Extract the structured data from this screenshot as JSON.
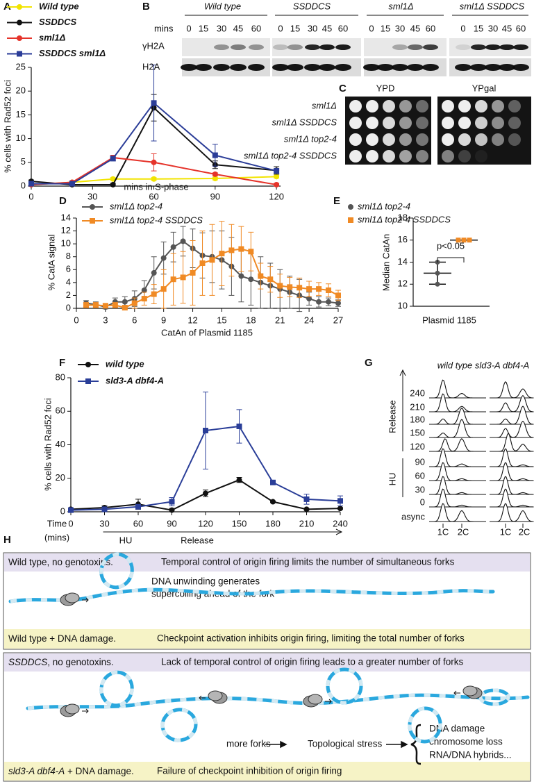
{
  "panel_labels": [
    "A",
    "B",
    "C",
    "D",
    "E",
    "F",
    "G",
    "H"
  ],
  "chart_data": [
    {
      "type": "line",
      "ylabel": "% cells with Rad52 foci",
      "xlabel": "mins in S-phase",
      "x": [
        0,
        20,
        40,
        60,
        90,
        120
      ],
      "xlim": [
        0,
        122
      ],
      "xticks": [
        0,
        30,
        60,
        90,
        120
      ],
      "ylim": [
        0,
        25
      ],
      "yticks": [
        0,
        5,
        10,
        15,
        20,
        25
      ],
      "series": [
        {
          "name": "Wild type",
          "color": "#f2e400",
          "marker": "circle",
          "values": [
            0.3,
            0.8,
            1.5,
            1.5,
            1.6,
            2
          ],
          "errors": [
            0.3,
            0.3,
            0.3,
            0.3,
            0.3,
            0.3
          ]
        },
        {
          "name": "SSDDCS",
          "color": "#111111",
          "marker": "circle",
          "values": [
            1,
            0.3,
            0.3,
            16.5,
            4.5,
            3.3
          ],
          "errors": [
            0.3,
            0.3,
            0.3,
            2.8,
            0.8,
            0.8
          ]
        },
        {
          "name": "sml1Δ",
          "color": "#e5332a",
          "marker": "circle",
          "values": [
            0.3,
            0.8,
            6,
            5,
            2.5,
            0.3
          ],
          "errors": [
            0.3,
            0.3,
            0.5,
            1.8,
            0.3,
            0.3
          ]
        },
        {
          "name": "SSDDCS sml1Δ",
          "color": "#2b3d98",
          "marker": "square",
          "values": [
            0.5,
            0.5,
            5.8,
            17.5,
            6.5,
            3.2
          ],
          "errors": [
            0.3,
            0.3,
            0.5,
            8,
            2.3,
            0.5
          ]
        }
      ]
    },
    {
      "type": "line",
      "ylabel": "% CatA signal",
      "xlabel": "CatAn of Plasmid 1185",
      "x": [
        1,
        2,
        3,
        4,
        5,
        6,
        7,
        8,
        9,
        10,
        11,
        12,
        13,
        14,
        15,
        16,
        17,
        18,
        19,
        20,
        21,
        22,
        23,
        24,
        25,
        26,
        27
      ],
      "xlim": [
        0,
        27
      ],
      "xticks": [
        0,
        3,
        6,
        9,
        12,
        15,
        18,
        21,
        24,
        27
      ],
      "ylim": [
        0,
        14
      ],
      "yticks": [
        0,
        2,
        4,
        6,
        8,
        10,
        12,
        14
      ],
      "series": [
        {
          "name": "sml1Δ top2-4",
          "color": "#555555",
          "marker": "circle",
          "values": [
            0.8,
            0.6,
            0.2,
            1.0,
            1.0,
            1.5,
            2.8,
            5.5,
            7.8,
            9.5,
            10.4,
            9.3,
            8.2,
            8.0,
            7.5,
            6.5,
            5.0,
            4.5,
            4.0,
            3.5,
            3.0,
            2.5,
            2.0,
            1.5,
            1.0,
            1.0,
            0.8
          ],
          "errors": [
            0.4,
            0.4,
            0.3,
            0.6,
            0.8,
            1.2,
            1.5,
            2.5,
            2.5,
            2.3,
            2.3,
            3.0,
            3.5,
            4.0,
            4.5,
            4.5,
            4.0,
            4.0,
            4.0,
            3.5,
            3.0,
            2.5,
            2.5,
            1.0,
            0.8,
            0.6,
            0.5
          ]
        },
        {
          "name": "sml1Δ top2-4 SSDDCS",
          "color": "#f08a24",
          "marker": "square",
          "values": [
            0.5,
            0.5,
            0.4,
            0.5,
            0.1,
            0.8,
            1.5,
            2.2,
            3.0,
            4.5,
            4.8,
            5.5,
            7.0,
            7.5,
            8.5,
            9.0,
            9.2,
            8.8,
            5.0,
            4.5,
            3.5,
            3.3,
            3.2,
            3.0,
            3.0,
            2.8,
            2.0
          ],
          "errors": [
            0.4,
            0.4,
            0.3,
            0.4,
            0.3,
            0.8,
            1.0,
            1.5,
            3.0,
            4.0,
            4.0,
            5.0,
            5.0,
            5.5,
            5.0,
            4.0,
            3.5,
            3.0,
            2.0,
            2.0,
            1.8,
            1.5,
            1.5,
            1.2,
            1.0,
            1.0,
            0.8
          ]
        }
      ]
    },
    {
      "type": "dot",
      "ylabel": "Median CatAn",
      "xlabel": "Plasmid 1185",
      "annotation": "p<0.05",
      "ylim": [
        10,
        18
      ],
      "yticks": [
        10,
        12,
        14,
        16,
        18
      ],
      "series": [
        {
          "name": "sml1Δ top2-4",
          "color": "#555555",
          "marker": "circle",
          "values": [
            12,
            13,
            14
          ],
          "median": 13
        },
        {
          "name": "sml1Δ top2-4 SSDDCS",
          "color": "#f08a24",
          "marker": "square",
          "values": [
            16,
            16,
            16
          ],
          "median": 16
        }
      ]
    },
    {
      "type": "line",
      "ylabel": "% cells with Rad52 foci",
      "time_label": "Time",
      "time_unit": "(mins)",
      "phases": [
        "HU",
        "Release"
      ],
      "x": [
        0,
        30,
        60,
        90,
        120,
        150,
        180,
        210,
        240
      ],
      "xlim": [
        0,
        240
      ],
      "xticks": [
        0,
        30,
        60,
        90,
        120,
        150,
        180,
        210,
        240
      ],
      "ylim": [
        0,
        80
      ],
      "yticks": [
        0,
        20,
        40,
        60,
        80
      ],
      "series": [
        {
          "name": "wild type",
          "color": "#111111",
          "marker": "circle",
          "values": [
            1.5,
            2.5,
            4.5,
            1,
            11,
            19,
            6,
            1.5,
            2
          ],
          "errors": [
            0.5,
            1,
            3,
            1,
            2,
            1.5,
            0.5,
            0.5,
            0.5
          ]
        },
        {
          "name": "sld3-A dbf4-A",
          "color": "#2a3e98",
          "marker": "square",
          "values": [
            1,
            1.5,
            3,
            6,
            48.5,
            51,
            17.5,
            7.5,
            6.5
          ],
          "errors": [
            0.5,
            0.5,
            1,
            2.5,
            23,
            10,
            1,
            3,
            3
          ]
        }
      ]
    }
  ],
  "blot": {
    "mins_label": "mins",
    "rows": [
      "γH2A",
      "H2A"
    ],
    "groups": [
      {
        "label": "Wild type",
        "times": [
          0,
          15,
          30,
          45,
          60
        ]
      },
      {
        "label": "SSDDCS",
        "times": [
          0,
          15,
          30,
          45,
          60
        ]
      },
      {
        "label": "sml1Δ",
        "times": [
          0,
          15,
          30,
          45,
          60
        ]
      },
      {
        "label": "sml1Δ SSDDCS",
        "times": [
          0,
          15,
          30,
          45,
          60
        ]
      }
    ]
  },
  "spot_assay": {
    "media": [
      "YPD",
      "YPgal"
    ],
    "strains": [
      "sml1Δ",
      "sml1Δ SSDDCS",
      "sml1Δ top2-4",
      "sml1Δ top2-4 SSDDCS"
    ]
  },
  "flow": {
    "columns": [
      "wild type",
      "sld3-A dbf4-A"
    ],
    "timepoints": [
      240,
      210,
      180,
      150,
      120,
      90,
      60,
      30,
      0,
      "async"
    ],
    "phases": [
      "Release",
      "HU"
    ],
    "peaks": [
      "1C",
      "2C"
    ]
  },
  "model": {
    "boxes": [
      {
        "header": [
          "Wild type, no genotoxins."
        ],
        "header_text": "Temporal control of origin firing limits the number of simultaneous forks",
        "notes": [
          "DNA unwinding generates",
          "supercoiling ahead of the fork"
        ],
        "footer": [
          "Wild type + DNA damage."
        ],
        "footer_text": "Checkpoint activation inhibits origin firing, limiting the total number of forks"
      },
      {
        "header": [
          "SSDDCS",
          ", no genotoxins."
        ],
        "header_text": "Lack of temporal control of origin firing leads to a greater number of forks",
        "notes": [
          "more forks",
          "Topological stress",
          "DNA damage",
          "chromosome loss",
          "RNA/DNA hybrids..."
        ],
        "footer": [
          "sld3-A dbf4-A",
          " + DNA damage."
        ],
        "footer_text": "Failure of checkpoint inhibition of origin firing"
      }
    ]
  }
}
